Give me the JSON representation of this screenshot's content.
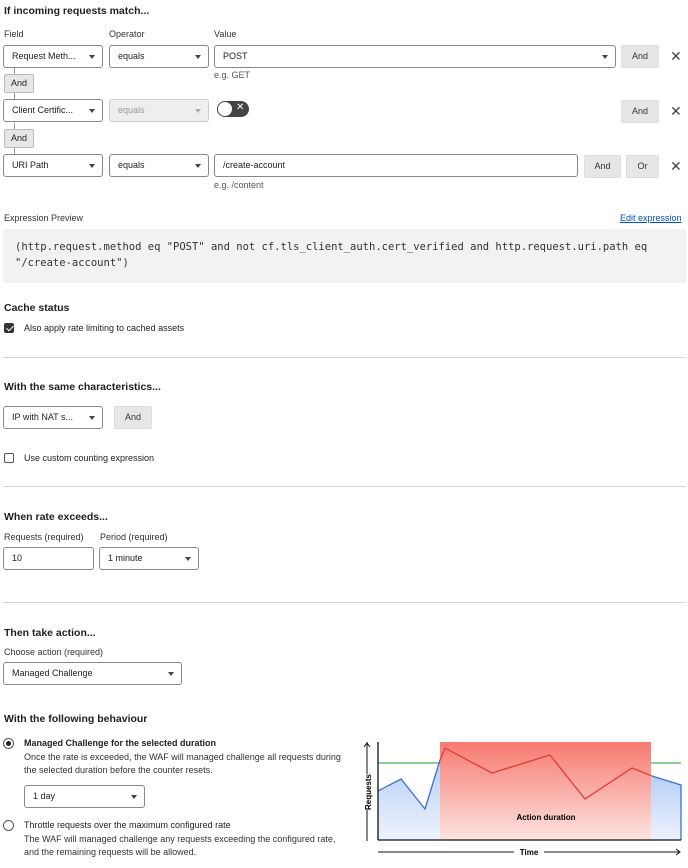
{
  "match": {
    "title": "If incoming requests match...",
    "col_field": "Field",
    "col_operator": "Operator",
    "col_value": "Value",
    "rows": [
      {
        "field": "Request Meth...",
        "operator": "equals",
        "value": "POST",
        "hint": "e.g. GET",
        "and": "And"
      },
      {
        "field": "Client Certific...",
        "operator": "equals",
        "toggle_on": false,
        "and": "And"
      },
      {
        "field": "URI Path",
        "operator": "equals",
        "value": "/create-account",
        "hint": "e.g. /content",
        "and": "And",
        "or": "Or"
      }
    ],
    "connector": "And"
  },
  "expression": {
    "label": "Expression Preview",
    "edit_link": "Edit expression",
    "text": "(http.request.method eq \"POST\" and not cf.tls_client_auth.cert_verified and http.request.uri.path eq \"/create-account\")"
  },
  "cache": {
    "title": "Cache status",
    "checkbox_label": "Also apply rate limiting to cached assets",
    "checked": true
  },
  "characteristics": {
    "title": "With the same characteristics...",
    "select": "IP with NAT s...",
    "and": "And",
    "custom_label": "Use custom counting expression",
    "custom_checked": false
  },
  "rate": {
    "title": "When rate exceeds...",
    "requests_label": "Requests (required)",
    "requests_value": "10",
    "period_label": "Period (required)",
    "period_value": "1 minute"
  },
  "action": {
    "title": "Then take action...",
    "choose_label": "Choose action (required)",
    "choose_value": "Managed Challenge"
  },
  "behaviour": {
    "title": "With the following behaviour",
    "option1": {
      "title": "Managed Challenge for the selected duration",
      "desc": "Once the rate is exceeded, the WAF will managed challenge all requests during the selected duration before the counter resets.",
      "duration": "1 day",
      "selected": true
    },
    "option2": {
      "title": "Throttle requests over the maximum configured rate",
      "desc": "The WAF will managed challenge any requests exceeding the configured rate, and the remaining requests will be allowed.",
      "selected": false
    }
  },
  "diagram": {
    "y_label": "Requests",
    "x_label": "Time",
    "region_label": "Action duration",
    "colors": {
      "threshold": "#4caf50",
      "normal": "#3b6fd6",
      "exceeded": "#e53935",
      "region": "#f77a70"
    }
  },
  "link_color": "#0051c3"
}
